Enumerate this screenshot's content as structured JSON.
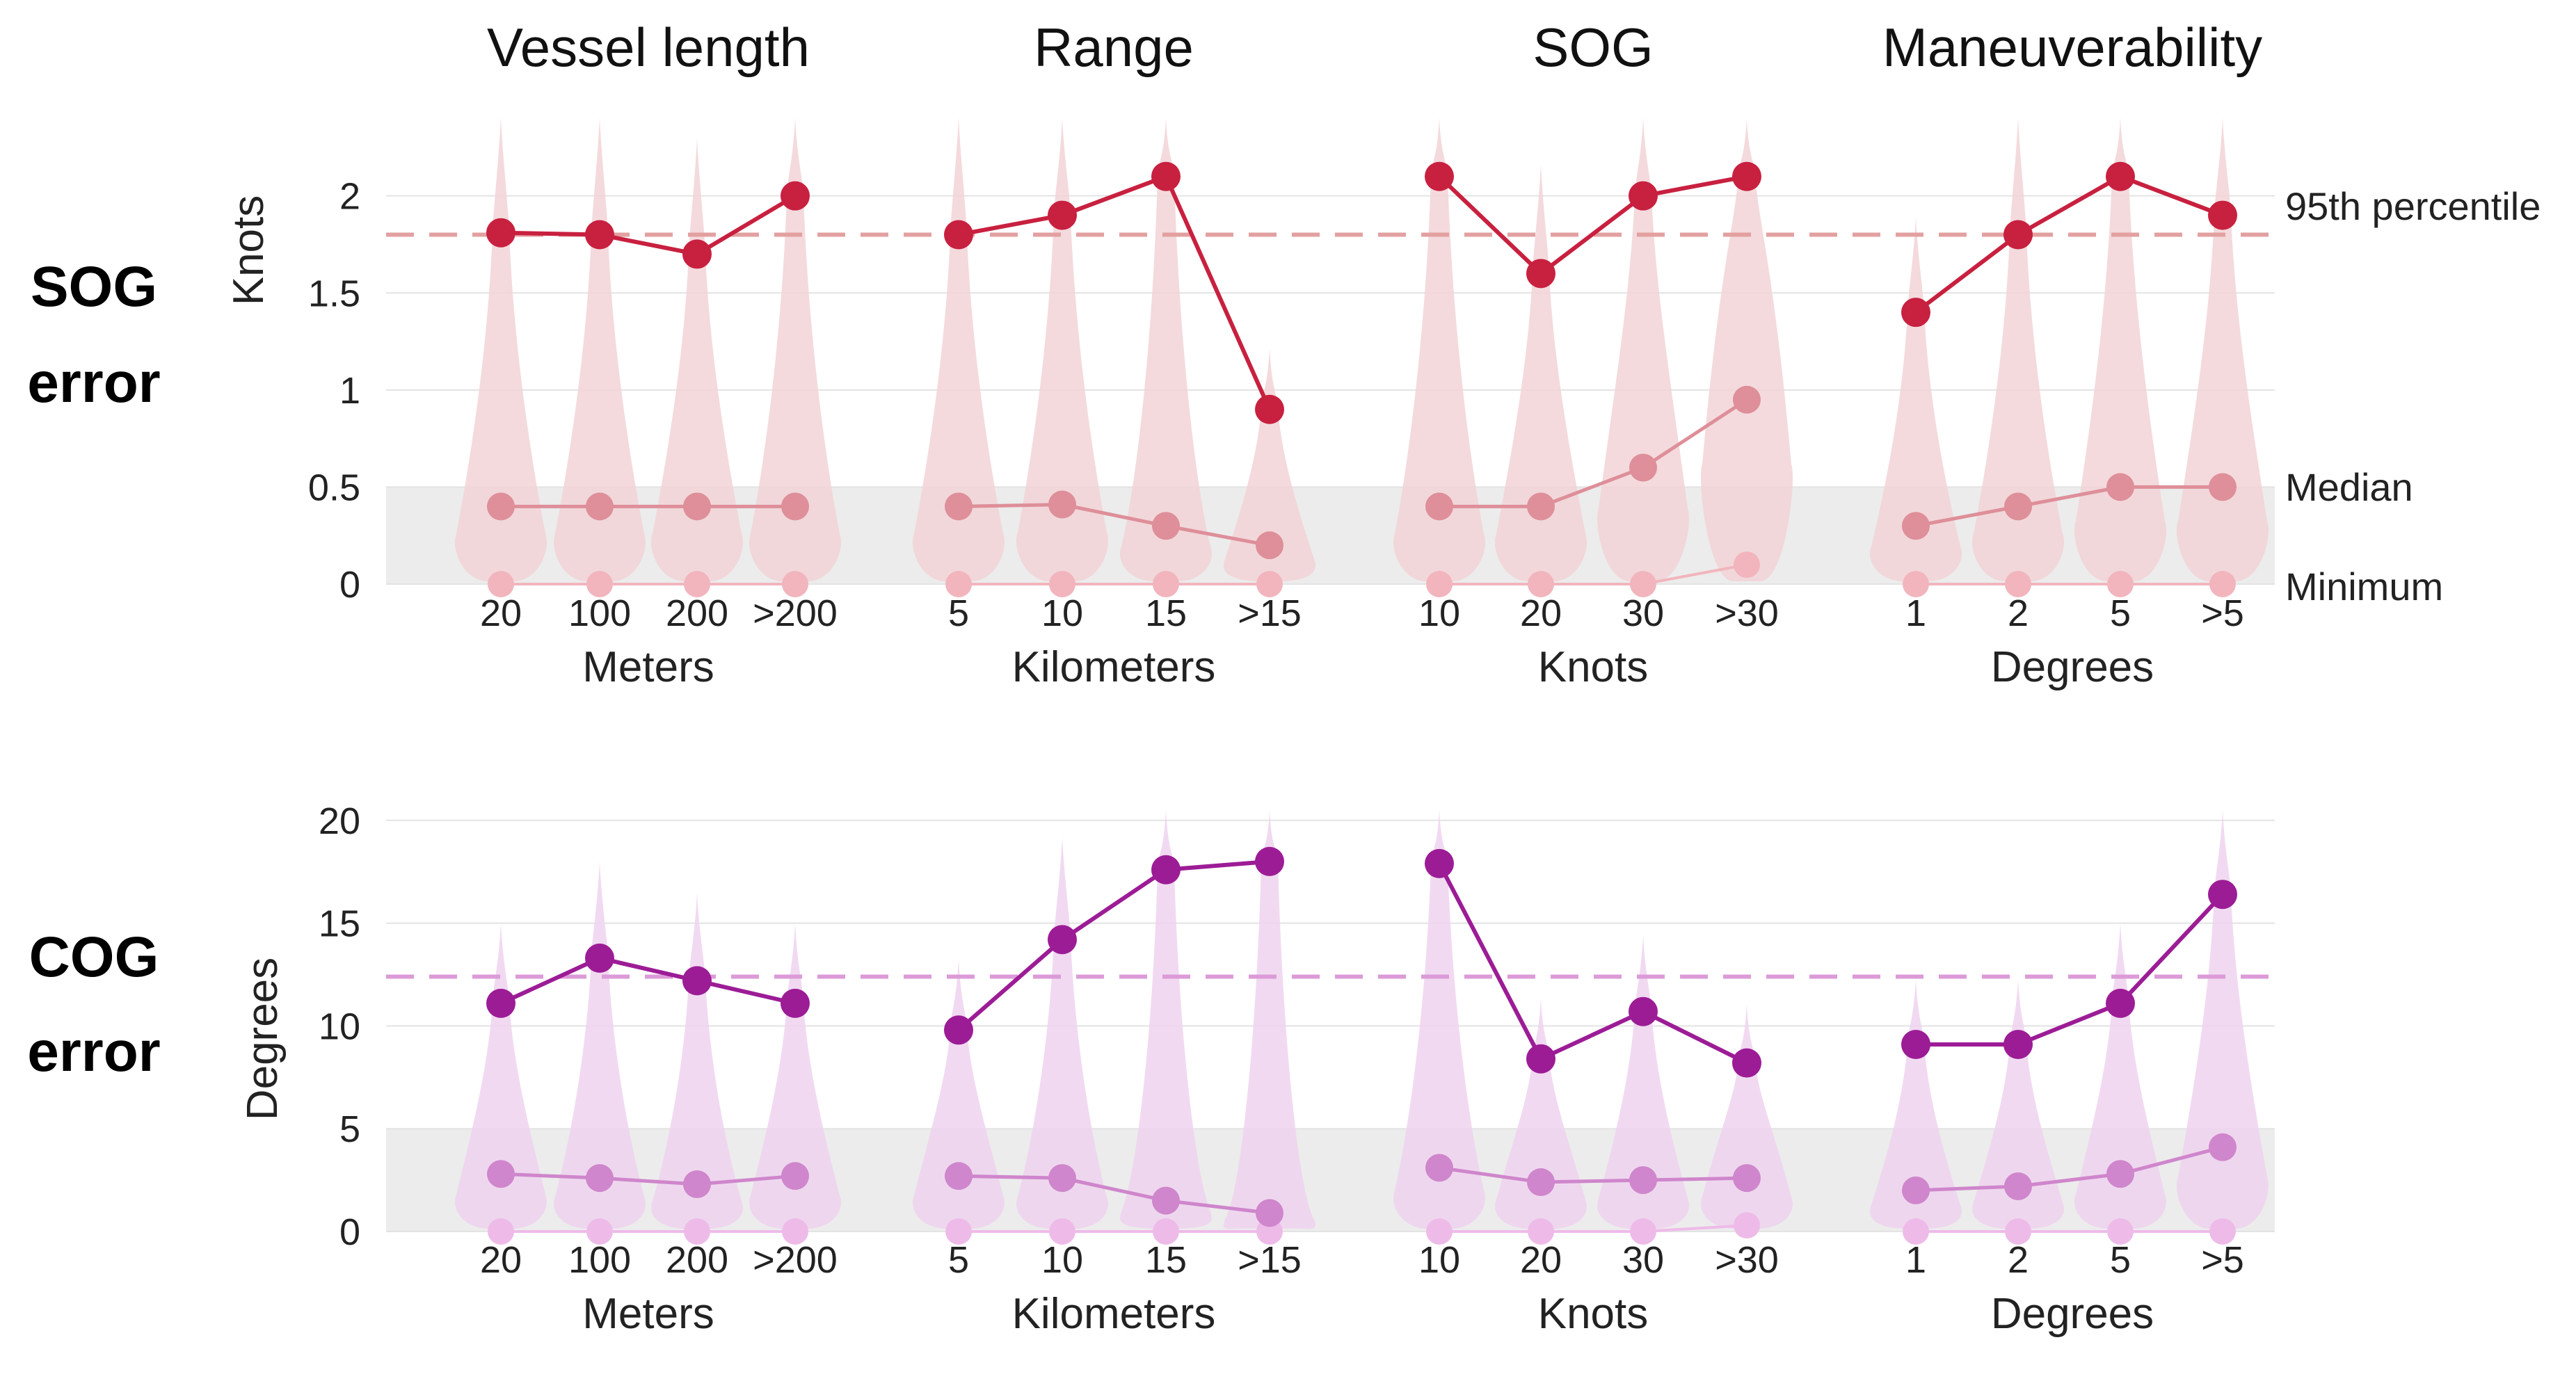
{
  "chart_data": {
    "type": "line",
    "titles": [
      "Vessel length",
      "Range",
      "SOG",
      "Maneuverability"
    ],
    "unit_labels": [
      "Meters",
      "Kilometers",
      "Knots",
      "Degrees"
    ],
    "categories": [
      [
        "20",
        "100",
        "200",
        ">200"
      ],
      [
        "5",
        "10",
        "15",
        ">15"
      ],
      [
        "10",
        "20",
        "30",
        ">30"
      ],
      [
        "1",
        "2",
        "5",
        ">5"
      ]
    ],
    "annotations": [
      "95th percentile",
      "Median",
      "Minimum"
    ],
    "rows": [
      {
        "row_label": [
          "SOG",
          "error"
        ],
        "ylabel": "Knots",
        "ylim": [
          0,
          2.4
        ],
        "yticks": [
          0,
          0.5,
          1,
          1.5,
          2
        ],
        "ytick_labels": [
          "0",
          "0.5",
          "1",
          "1.5",
          "2"
        ],
        "shaded_band": [
          0,
          0.5
        ],
        "reference_line": 1.8,
        "colors": {
          "p95": "#c8203f",
          "median": "#de8f99",
          "minimum": "#f2b5bd",
          "violin": "#f2d4d7",
          "reference": "#e3a0a0"
        },
        "panels": [
          {
            "p95": [
              1.81,
              1.8,
              1.7,
              2.0
            ],
            "median": [
              0.4,
              0.4,
              0.4,
              0.4
            ],
            "minimum": [
              0,
              0,
              0,
              0
            ]
          },
          {
            "p95": [
              1.8,
              1.9,
              2.1,
              0.9
            ],
            "median": [
              0.4,
              0.41,
              0.3,
              0.2
            ],
            "minimum": [
              0,
              0,
              0,
              0
            ]
          },
          {
            "p95": [
              2.1,
              1.6,
              2.0,
              2.1
            ],
            "median": [
              0.4,
              0.4,
              0.6,
              0.95
            ],
            "minimum": [
              0,
              0,
              0,
              0.1
            ]
          },
          {
            "p95": [
              1.4,
              1.8,
              2.1,
              1.9
            ],
            "median": [
              0.3,
              0.4,
              0.5,
              0.5
            ],
            "minimum": [
              0,
              0,
              0,
              0
            ]
          }
        ]
      },
      {
        "row_label": [
          "COG",
          "error"
        ],
        "ylabel": "Degrees",
        "ylim": [
          0,
          20.5
        ],
        "yticks": [
          0,
          5,
          10,
          15,
          20
        ],
        "ytick_labels": [
          "0",
          "5",
          "10",
          "15",
          "20"
        ],
        "shaded_band": [
          0,
          5
        ],
        "reference_line": 12.4,
        "colors": {
          "p95": "#9c1c96",
          "median": "#cf86cc",
          "minimum": "#eebbe9",
          "violin": "#efd3ee",
          "reference": "#dc9bd8"
        },
        "panels": [
          {
            "p95": [
              11.1,
              13.3,
              12.2,
              11.1
            ],
            "median": [
              2.8,
              2.6,
              2.3,
              2.7
            ],
            "minimum": [
              0,
              0,
              0,
              0
            ]
          },
          {
            "p95": [
              9.8,
              14.2,
              17.6,
              18.0
            ],
            "median": [
              2.7,
              2.6,
              1.5,
              0.9
            ],
            "minimum": [
              0,
              0,
              0,
              0
            ]
          },
          {
            "p95": [
              17.9,
              8.4,
              10.7,
              8.2
            ],
            "median": [
              3.1,
              2.4,
              2.5,
              2.6
            ],
            "minimum": [
              0,
              0,
              0,
              0.3
            ]
          },
          {
            "p95": [
              9.1,
              9.1,
              11.1,
              16.4
            ],
            "median": [
              2.0,
              2.2,
              2.8,
              4.1
            ],
            "minimum": [
              0,
              0,
              0,
              0
            ]
          }
        ]
      }
    ]
  }
}
